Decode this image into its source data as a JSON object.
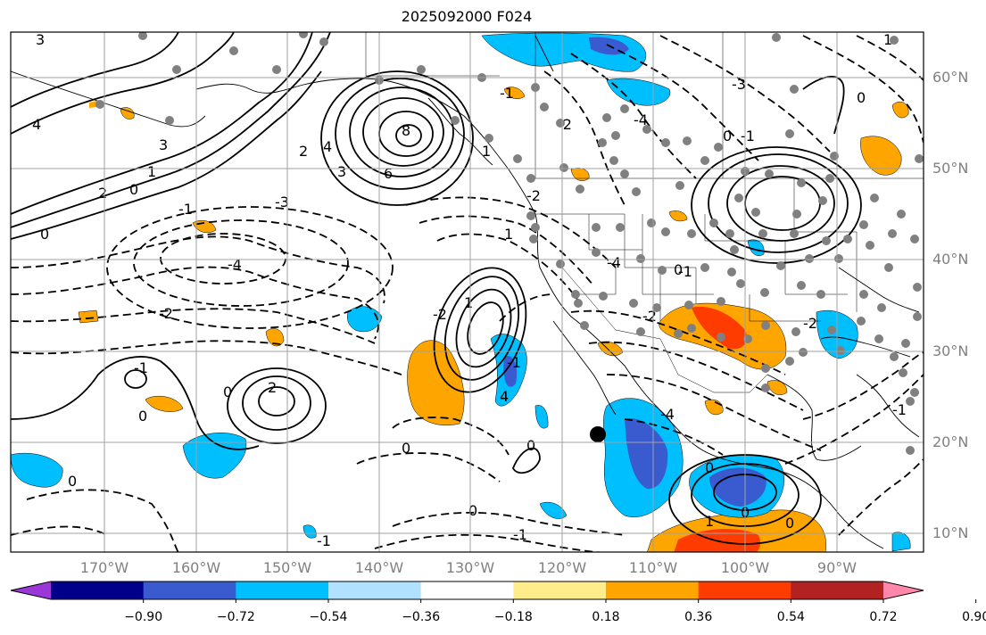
{
  "title": "2025092000 F024",
  "lat_labels": [
    "60°N",
    "50°N",
    "40°N",
    "30°N",
    "20°N",
    "10°N"
  ],
  "lon_labels": [
    "170°W",
    "160°W",
    "150°W",
    "140°W",
    "130°W",
    "120°W",
    "110°W",
    "100°W",
    "90°W"
  ],
  "colorbar": {
    "tick_labels": [
      "−0.90",
      "−0.72",
      "−0.54",
      "−0.36",
      "−0.18",
      "0.18",
      "0.36",
      "0.54",
      "0.72",
      "0.90"
    ],
    "colors": [
      "#9a37d6",
      "#00008b",
      "#3a5bd0",
      "#00bfff",
      "#b0e2ff",
      "#ffffff",
      "#ffec8b",
      "#ffa500",
      "#ff3c00",
      "#b22222",
      "#ff88aa"
    ]
  },
  "contour_labels": [
    "3",
    "4",
    "3",
    "2",
    "0",
    "1",
    "0",
    "-1",
    "-2",
    "-3",
    "-4",
    "8",
    "6",
    "4",
    "3",
    "2",
    "1",
    "-1",
    "-2",
    "-3",
    "-2",
    "-4",
    "1",
    "0",
    "-1",
    "0",
    "1",
    "2",
    "0",
    "0",
    "0",
    "-1",
    "0",
    "1",
    "-2",
    "-1",
    "0",
    "-1",
    "0",
    "-1",
    "-4",
    "-2",
    "-1",
    "0",
    "4",
    "-4",
    "-2",
    "0",
    "1",
    "-1",
    "0",
    "0"
  ]
}
